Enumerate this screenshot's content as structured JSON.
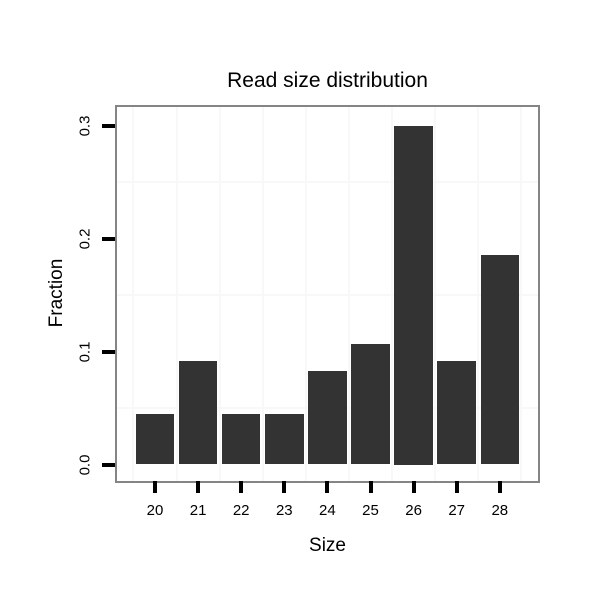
{
  "figure": {
    "title": "Read size distribution"
  },
  "chart_data": {
    "type": "bar",
    "title": "Read size distribution",
    "xlabel": "Size",
    "ylabel": "Fraction",
    "categories": [
      20,
      21,
      22,
      23,
      24,
      25,
      26,
      27,
      28
    ],
    "values": [
      0.045,
      0.092,
      0.045,
      0.045,
      0.083,
      0.107,
      0.3,
      0.092,
      0.185
    ],
    "ylim": [
      -0.015,
      0.315
    ],
    "y_major_ticks": [
      0.0,
      0.1,
      0.2,
      0.3
    ],
    "y_tick_labels": [
      "0.0",
      "0.1",
      "0.2",
      "0.3"
    ],
    "x_tick_labels": [
      "20",
      "21",
      "22",
      "23",
      "24",
      "25",
      "26",
      "27",
      "28"
    ],
    "y_minor_gridlines": [
      0.05,
      0.15,
      0.25
    ],
    "x_minor_gridlines": [
      19.5,
      20.5,
      21.5,
      22.5,
      23.5,
      24.5,
      25.5,
      26.5,
      27.5,
      28.5
    ],
    "grid": "minor-only",
    "legend": "none",
    "bar_color": "#333333",
    "panel_border_color": "#858585",
    "gridline_color": "#f8f8f8",
    "tick_color": "#000000",
    "text_color": "#000000",
    "background": "#ffffff"
  }
}
